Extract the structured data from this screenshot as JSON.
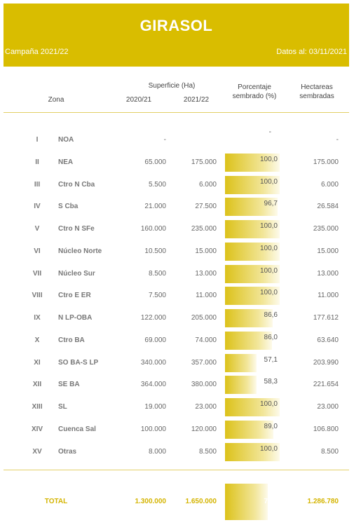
{
  "header": {
    "title": "GIRASOL",
    "campaign": "Campaña 2021/22",
    "date": "Datos al: 03/11/2021"
  },
  "columns": {
    "zona": "Zona",
    "superficie": "Superficie (Ha)",
    "year1": "2020/21",
    "year2": "2021/22",
    "porcentaje_1": "Porcentaje",
    "porcentaje_2": "sembrado (%)",
    "hectareas_1": "Hectareas",
    "hectareas_2": "sembradas"
  },
  "rows": [
    {
      "roman": "I",
      "zona": "NOA",
      "s2020": "-",
      "s2021": "",
      "pct": "-",
      "pct_value": 0,
      "hect": "-"
    },
    {
      "roman": "II",
      "zona": "NEA",
      "s2020": "65.000",
      "s2021": "175.000",
      "pct": "100,0",
      "pct_value": 100.0,
      "hect": "175.000"
    },
    {
      "roman": "III",
      "zona": "Ctro N Cba",
      "s2020": "5.500",
      "s2021": "6.000",
      "pct": "100,0",
      "pct_value": 100.0,
      "hect": "6.000"
    },
    {
      "roman": "IV",
      "zona": "S Cba",
      "s2020": "21.000",
      "s2021": "27.500",
      "pct": "96,7",
      "pct_value": 96.7,
      "hect": "26.584"
    },
    {
      "roman": "V",
      "zona": "Ctro N SFe",
      "s2020": "160.000",
      "s2021": "235.000",
      "pct": "100,0",
      "pct_value": 100.0,
      "hect": "235.000"
    },
    {
      "roman": "VI",
      "zona": "Núcleo Norte",
      "s2020": "10.500",
      "s2021": "15.000",
      "pct": "100,0",
      "pct_value": 100.0,
      "hect": "15.000"
    },
    {
      "roman": "VII",
      "zona": "Núcleo Sur",
      "s2020": "8.500",
      "s2021": "13.000",
      "pct": "100,0",
      "pct_value": 100.0,
      "hect": "13.000"
    },
    {
      "roman": "VIII",
      "zona": "Ctro E ER",
      "s2020": "7.500",
      "s2021": "11.000",
      "pct": "100,0",
      "pct_value": 100.0,
      "hect": "11.000"
    },
    {
      "roman": "IX",
      "zona": "N LP-OBA",
      "s2020": "122.000",
      "s2021": "205.000",
      "pct": "86,6",
      "pct_value": 86.6,
      "hect": "177.612"
    },
    {
      "roman": "X",
      "zona": "Ctro BA",
      "s2020": "69.000",
      "s2021": "74.000",
      "pct": "86,0",
      "pct_value": 86.0,
      "hect": "63.640"
    },
    {
      "roman": "XI",
      "zona": "SO BA-S LP",
      "s2020": "340.000",
      "s2021": "357.000",
      "pct": "57,1",
      "pct_value": 57.1,
      "hect": "203.990"
    },
    {
      "roman": "XII",
      "zona": "SE BA",
      "s2020": "364.000",
      "s2021": "380.000",
      "pct": "58,3",
      "pct_value": 58.3,
      "hect": "221.654"
    },
    {
      "roman": "XIII",
      "zona": "SL",
      "s2020": "19.000",
      "s2021": "23.000",
      "pct": "100,0",
      "pct_value": 100.0,
      "hect": "23.000"
    },
    {
      "roman": "XIV",
      "zona": "Cuenca Sal",
      "s2020": "100.000",
      "s2021": "120.000",
      "pct": "89,0",
      "pct_value": 89.0,
      "hect": "106.800"
    },
    {
      "roman": "XV",
      "zona": "Otras",
      "s2020": "8.000",
      "s2021": "8.500",
      "pct": "100,0",
      "pct_value": 100.0,
      "hect": "8.500"
    }
  ],
  "total": {
    "label": "TOTAL",
    "s2020": "1.300.000",
    "s2021": "1.650.000",
    "pct": "78,0",
    "pct_value": 78.0,
    "hect": "1.286.780"
  }
}
